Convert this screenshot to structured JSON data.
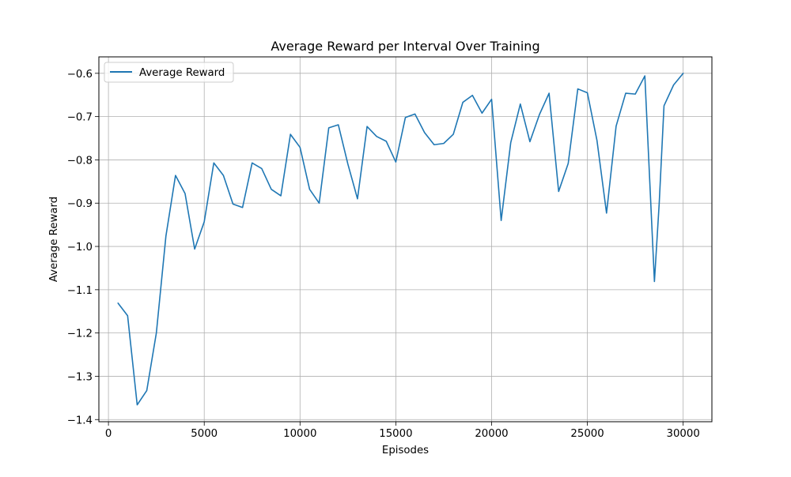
{
  "chart_data": {
    "type": "line",
    "title": "Average Reward per Interval Over Training",
    "xlabel": "Episodes",
    "ylabel": "Average Reward",
    "xlim": [
      -500,
      31500
    ],
    "ylim": [
      -1.405,
      -0.562
    ],
    "xticks": [
      0,
      5000,
      10000,
      15000,
      20000,
      25000,
      30000
    ],
    "yticks": [
      -1.4,
      -1.3,
      -1.2,
      -1.1,
      -1.0,
      -0.9,
      -0.8,
      -0.7,
      -0.6
    ],
    "grid": true,
    "legend": {
      "position": "top-left"
    },
    "series": [
      {
        "name": "Average Reward",
        "color": "#1f77b4",
        "x": [
          500,
          1000,
          1500,
          2000,
          2500,
          3000,
          3500,
          4000,
          4500,
          5000,
          5500,
          6000,
          6500,
          7000,
          7500,
          8000,
          8500,
          9000,
          9500,
          10000,
          10500,
          11000,
          11500,
          12000,
          12500,
          13000,
          13500,
          14000,
          14500,
          15000,
          15500,
          16000,
          16500,
          17000,
          17500,
          18000,
          18500,
          19000,
          19500,
          20000,
          20500,
          21000,
          21500,
          22000,
          22500,
          23000,
          23500,
          24000,
          24500,
          25000,
          25500,
          26000,
          26500,
          27000,
          27500,
          28000,
          28500,
          28750,
          29000,
          29500,
          30000
        ],
        "values": [
          -1.131,
          -1.16,
          -1.366,
          -1.333,
          -1.2,
          -0.976,
          -0.836,
          -0.878,
          -1.006,
          -0.943,
          -0.807,
          -0.836,
          -0.902,
          -0.91,
          -0.807,
          -0.82,
          -0.868,
          -0.883,
          -0.741,
          -0.771,
          -0.868,
          -0.9,
          -0.726,
          -0.719,
          -0.81,
          -0.89,
          -0.723,
          -0.746,
          -0.757,
          -0.805,
          -0.702,
          -0.694,
          -0.737,
          -0.765,
          -0.762,
          -0.741,
          -0.667,
          -0.651,
          -0.692,
          -0.66,
          -0.94,
          -0.76,
          -0.671,
          -0.758,
          -0.695,
          -0.646,
          -0.873,
          -0.808,
          -0.636,
          -0.645,
          -0.755,
          -0.923,
          -0.722,
          -0.646,
          -0.648,
          -0.606,
          -1.081,
          -0.9,
          -0.675,
          -0.627,
          -0.6
        ]
      }
    ]
  }
}
